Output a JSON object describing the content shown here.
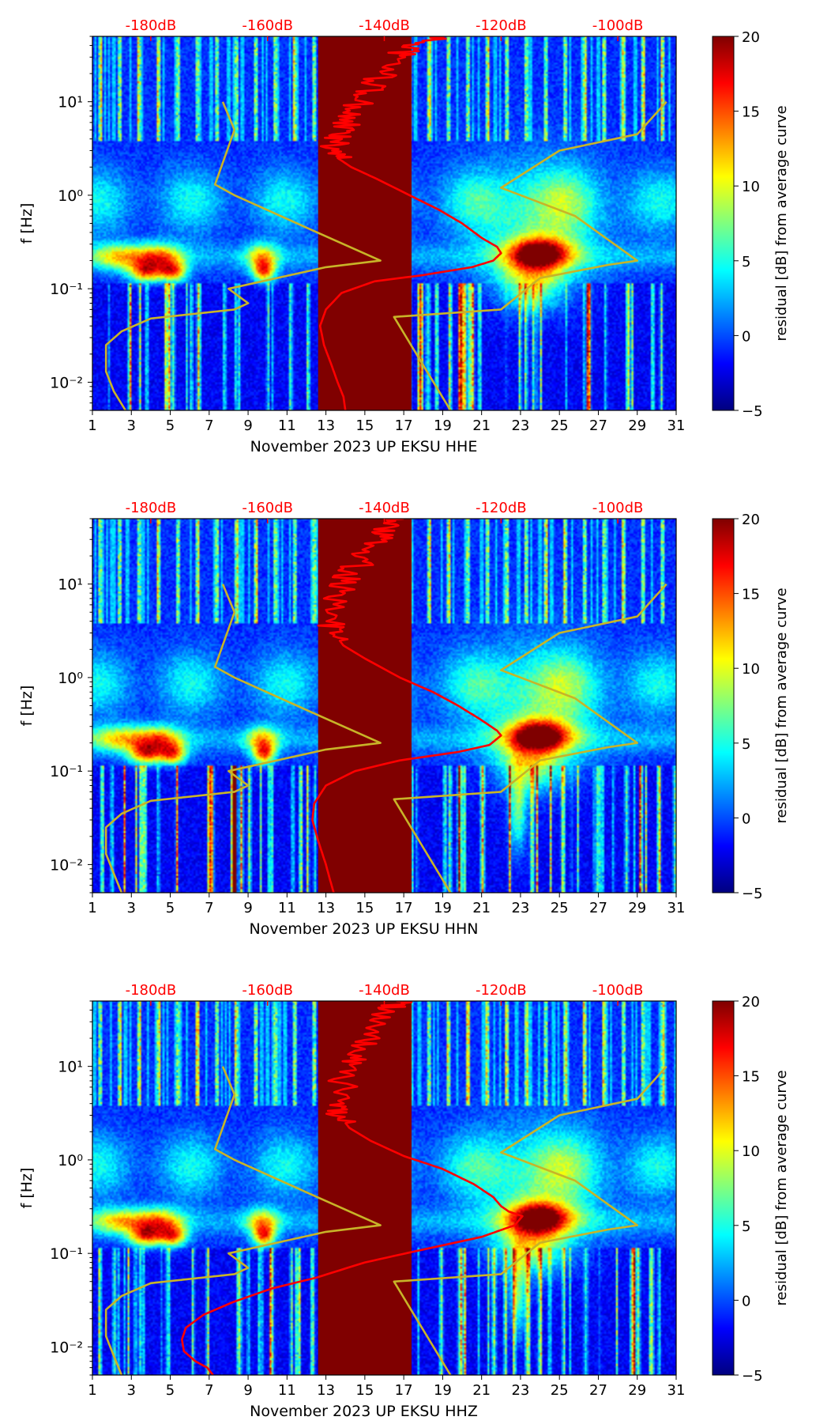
{
  "colors": {
    "background": "#ffffff",
    "top_axis_text": "#ff0000",
    "red_curve": "#ff0000",
    "yellow_curve": "#c8b428",
    "gap_fill": "#800000",
    "plot_base": "#0a2a9a"
  },
  "colormap_stops": [
    "#00007f",
    "#0000ff",
    "#007fff",
    "#00ffff",
    "#7fff7f",
    "#ffff00",
    "#ff7f00",
    "#ff0000",
    "#7f0000"
  ],
  "chart_data": [
    {
      "type": "heatmap",
      "title": "",
      "xlabel": "November 2023 UP EKSU  HHE",
      "ylabel": "f [Hz]",
      "component": "HHE",
      "x_ticks": [
        1,
        3,
        5,
        7,
        9,
        11,
        13,
        15,
        17,
        19,
        21,
        23,
        25,
        27,
        29,
        31
      ],
      "xlim": [
        1,
        31
      ],
      "y_ticks": [
        0.01,
        0.1,
        1,
        10
      ],
      "y_tick_labels": [
        "10⁻²",
        "10⁻¹",
        "10⁰",
        "10¹"
      ],
      "ylim": [
        0.005,
        50
      ],
      "yscale": "log",
      "top_axis_labels": [
        "-180dB",
        "-160dB",
        "-140dB",
        "-120dB",
        "-100dB"
      ],
      "top_axis_positions": [
        4.0,
        10.0,
        16.0,
        22.0,
        28.0
      ],
      "colorbar": {
        "label": "residual [dB] from average curve",
        "ticks": [
          20,
          15,
          10,
          5,
          0,
          -5
        ],
        "range": [
          -5,
          20
        ]
      },
      "data_gap": [
        12.6,
        17.4
      ],
      "red_curve": {
        "x": [
          19.0,
          17.5,
          16.7,
          16.0,
          15.3,
          14.7,
          14.2,
          13.8,
          13.5,
          13.3,
          13.6,
          14.3,
          15.6,
          17.3,
          18.8,
          20.0,
          21.0,
          21.8,
          22.0,
          21.6,
          20.5,
          18.0,
          15.5,
          13.8,
          13.0,
          12.7,
          12.9,
          13.3,
          13.6,
          13.9,
          14.0
        ],
        "y": [
          50,
          40,
          30,
          20,
          14,
          10,
          7,
          5,
          4,
          3,
          2.5,
          2.0,
          1.5,
          1.0,
          0.7,
          0.5,
          0.35,
          0.28,
          0.24,
          0.2,
          0.17,
          0.14,
          0.12,
          0.09,
          0.06,
          0.04,
          0.025,
          0.015,
          0.01,
          0.007,
          0.005
        ]
      },
      "yellow_curves": [
        {
          "x": [
            7.7,
            8.3,
            7.3,
            8.3,
            12.0,
            15.8,
            13.0,
            8.0,
            9.0,
            8.3,
            4.0,
            2.5,
            1.7,
            1.7,
            2.1,
            2.7
          ],
          "y": [
            10,
            5,
            1.3,
            1.0,
            0.45,
            0.2,
            0.17,
            0.1,
            0.07,
            0.06,
            0.048,
            0.035,
            0.025,
            0.013,
            0.008,
            0.005
          ]
        },
        {
          "x": [
            30.5,
            29.0,
            25.0,
            22.0,
            25.8,
            29.0,
            27.5,
            24.0,
            22.0,
            16.5,
            19.4
          ],
          "y": [
            10,
            4.5,
            3,
            1.2,
            0.6,
            0.2,
            0.18,
            0.13,
            0.06,
            0.05,
            0.005
          ]
        }
      ]
    },
    {
      "type": "heatmap",
      "title": "",
      "xlabel": "November 2023 UP EKSU  HHN",
      "ylabel": "f [Hz]",
      "component": "HHN",
      "x_ticks": [
        1,
        3,
        5,
        7,
        9,
        11,
        13,
        15,
        17,
        19,
        21,
        23,
        25,
        27,
        29,
        31
      ],
      "xlim": [
        1,
        31
      ],
      "y_ticks": [
        0.01,
        0.1,
        1,
        10
      ],
      "y_tick_labels": [
        "10⁻²",
        "10⁻¹",
        "10⁰",
        "10¹"
      ],
      "ylim": [
        0.005,
        50
      ],
      "yscale": "log",
      "top_axis_labels": [
        "-180dB",
        "-160dB",
        "-140dB",
        "-120dB",
        "-100dB"
      ],
      "top_axis_positions": [
        4.0,
        10.0,
        16.0,
        22.0,
        28.0
      ],
      "colorbar": {
        "label": "residual [dB] from average curve",
        "ticks": [
          20,
          15,
          10,
          5,
          0,
          -5
        ],
        "range": [
          -5,
          20
        ]
      },
      "data_gap": [
        12.6,
        17.4
      ],
      "red_curve": {
        "x": [
          17.0,
          16.3,
          15.7,
          15.0,
          14.4,
          13.9,
          13.6,
          13.3,
          13.4,
          13.9,
          15.0,
          16.8,
          18.5,
          19.8,
          21.0,
          21.8,
          22.0,
          21.4,
          19.8,
          16.8,
          14.5,
          13.0,
          12.4,
          12.3,
          12.6,
          13.0,
          13.2,
          13.4
        ],
        "y": [
          50,
          40,
          30,
          20,
          14,
          10,
          7,
          4,
          3,
          2.2,
          1.6,
          1.0,
          0.7,
          0.5,
          0.35,
          0.27,
          0.24,
          0.19,
          0.16,
          0.13,
          0.1,
          0.07,
          0.045,
          0.03,
          0.018,
          0.01,
          0.007,
          0.005
        ]
      },
      "yellow_curves": [
        {
          "x": [
            7.7,
            8.3,
            7.3,
            8.3,
            12.0,
            15.8,
            13.0,
            8.0,
            9.0,
            8.3,
            4.0,
            2.5,
            1.7,
            1.7,
            2.1,
            2.5
          ],
          "y": [
            10,
            5,
            1.3,
            1.0,
            0.45,
            0.2,
            0.17,
            0.1,
            0.07,
            0.06,
            0.048,
            0.035,
            0.025,
            0.013,
            0.008,
            0.005
          ]
        },
        {
          "x": [
            30.5,
            29.0,
            25.0,
            22.0,
            25.8,
            29.0,
            27.5,
            24.0,
            22.0,
            16.5,
            19.4
          ],
          "y": [
            10,
            4.5,
            3,
            1.2,
            0.6,
            0.2,
            0.18,
            0.13,
            0.06,
            0.05,
            0.005
          ]
        }
      ]
    },
    {
      "type": "heatmap",
      "title": "",
      "xlabel": "November 2023 UP EKSU  HHZ",
      "ylabel": "f [Hz]",
      "component": "HHZ",
      "x_ticks": [
        1,
        3,
        5,
        7,
        9,
        11,
        13,
        15,
        17,
        19,
        21,
        23,
        25,
        27,
        29,
        31
      ],
      "xlim": [
        1,
        31
      ],
      "y_ticks": [
        0.01,
        0.1,
        1,
        10
      ],
      "y_tick_labels": [
        "10⁻²",
        "10⁻¹",
        "10⁰",
        "10¹"
      ],
      "ylim": [
        0.005,
        50
      ],
      "yscale": "log",
      "top_axis_labels": [
        "-180dB",
        "-160dB",
        "-140dB",
        "-120dB",
        "-100dB"
      ],
      "top_axis_positions": [
        4.0,
        10.0,
        16.0,
        22.0,
        28.0
      ],
      "colorbar": {
        "label": "residual [dB] from average curve",
        "ticks": [
          20,
          15,
          10,
          5,
          0,
          -5
        ],
        "range": [
          -5,
          20
        ]
      },
      "data_gap": [
        12.6,
        17.4
      ],
      "red_curve": {
        "x": [
          17.0,
          16.3,
          15.7,
          15.0,
          14.6,
          14.2,
          13.9,
          13.6,
          13.7,
          14.2,
          15.3,
          17.0,
          19.0,
          20.6,
          21.6,
          22.0,
          22.4,
          23.1,
          22.7,
          21.0,
          18.0,
          15.0,
          12.5,
          10.2,
          8.2,
          6.7,
          5.8,
          5.6,
          5.7,
          6.3,
          6.9,
          7.2
        ],
        "y": [
          50,
          40,
          30,
          20,
          14,
          10,
          7,
          4,
          3,
          2.2,
          1.6,
          1.1,
          0.8,
          0.55,
          0.4,
          0.32,
          0.28,
          0.25,
          0.2,
          0.15,
          0.11,
          0.08,
          0.055,
          0.042,
          0.03,
          0.022,
          0.016,
          0.012,
          0.009,
          0.007,
          0.006,
          0.005
        ]
      },
      "yellow_curves": [
        {
          "x": [
            7.7,
            8.3,
            7.3,
            8.3,
            12.0,
            15.8,
            13.0,
            8.0,
            9.0,
            8.3,
            4.0,
            2.5,
            1.7,
            1.7,
            2.1,
            2.5
          ],
          "y": [
            10,
            5,
            1.3,
            1.0,
            0.45,
            0.2,
            0.17,
            0.1,
            0.07,
            0.06,
            0.048,
            0.035,
            0.025,
            0.013,
            0.008,
            0.005
          ]
        },
        {
          "x": [
            30.5,
            29.0,
            25.0,
            22.0,
            25.8,
            29.0,
            27.5,
            24.0,
            22.0,
            16.5,
            19.4
          ],
          "y": [
            10,
            4.5,
            3,
            1.2,
            0.6,
            0.2,
            0.18,
            0.13,
            0.06,
            0.05,
            0.005
          ]
        }
      ]
    }
  ]
}
